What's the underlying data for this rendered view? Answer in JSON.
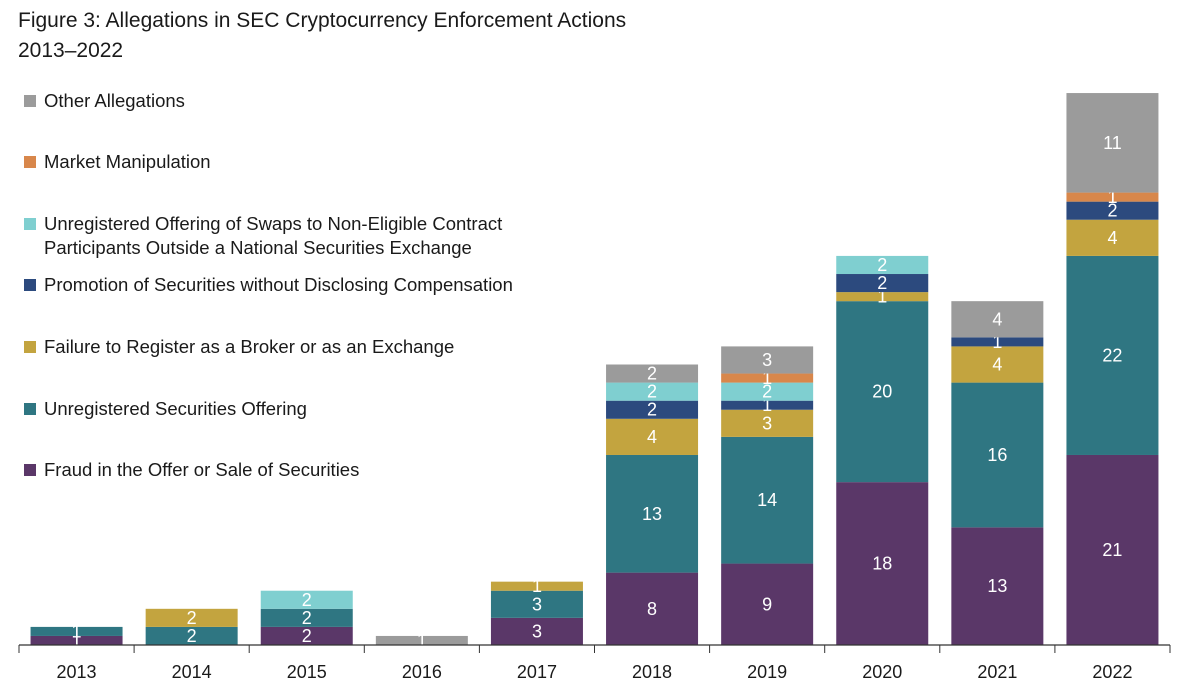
{
  "title_line1": "Figure 3: Allegations in SEC Cryptocurrency Enforcement Actions",
  "title_line2": "2013–2022",
  "legend": [
    {
      "label": "Other Allegations",
      "color": "#9b9b9b"
    },
    {
      "label": "Market Manipulation",
      "color": "#d8874b"
    },
    {
      "label": "Unregistered Offering of Swaps to Non-Eligible Contract",
      "label2": "Participants Outside a National Securities Exchange",
      "color": "#7fcfd0"
    },
    {
      "label": "Promotion of Securities without Disclosing Compensation",
      "color": "#2c4a7e"
    },
    {
      "label": "Failure to Register as a Broker or as an Exchange",
      "color": "#c3a43f"
    },
    {
      "label": "Unregistered Securities Offering",
      "color": "#2f7682"
    },
    {
      "label": "Fraud in the Offer or Sale of Securities",
      "color": "#5a3768"
    }
  ],
  "chart_data": {
    "type": "bar",
    "stacked": true,
    "title": "Figure 3: Allegations in SEC Cryptocurrency Enforcement Actions 2013–2022",
    "categories": [
      "2013",
      "2014",
      "2015",
      "2016",
      "2017",
      "2018",
      "2019",
      "2020",
      "2021",
      "2022"
    ],
    "series": [
      {
        "name": "Fraud in the Offer or Sale of Securities",
        "color": "#5a3768",
        "values": [
          1,
          0,
          2,
          0,
          3,
          8,
          9,
          18,
          13,
          21
        ]
      },
      {
        "name": "Unregistered Securities Offering",
        "color": "#2f7682",
        "values": [
          1,
          2,
          2,
          0,
          3,
          13,
          14,
          20,
          16,
          22
        ]
      },
      {
        "name": "Failure to Register as a Broker or as an Exchange",
        "color": "#c3a43f",
        "values": [
          0,
          2,
          0,
          0,
          1,
          4,
          3,
          1,
          4,
          4
        ]
      },
      {
        "name": "Promotion of Securities without Disclosing Compensation",
        "color": "#2c4a7e",
        "values": [
          0,
          0,
          0,
          0,
          0,
          2,
          1,
          2,
          1,
          2
        ]
      },
      {
        "name": "Unregistered Offering of Swaps to Non-Eligible Contract Participants Outside a National Securities Exchange",
        "color": "#7fcfd0",
        "values": [
          0,
          0,
          2,
          0,
          0,
          2,
          2,
          2,
          0,
          0
        ]
      },
      {
        "name": "Market Manipulation",
        "color": "#d8874b",
        "values": [
          0,
          0,
          0,
          0,
          0,
          0,
          1,
          0,
          0,
          1
        ]
      },
      {
        "name": "Other Allegations",
        "color": "#9b9b9b",
        "values": [
          0,
          0,
          0,
          1,
          0,
          2,
          3,
          0,
          4,
          11
        ]
      }
    ],
    "ylim": [
      0,
      62
    ],
    "grid": false,
    "legend_position": "top-left"
  }
}
